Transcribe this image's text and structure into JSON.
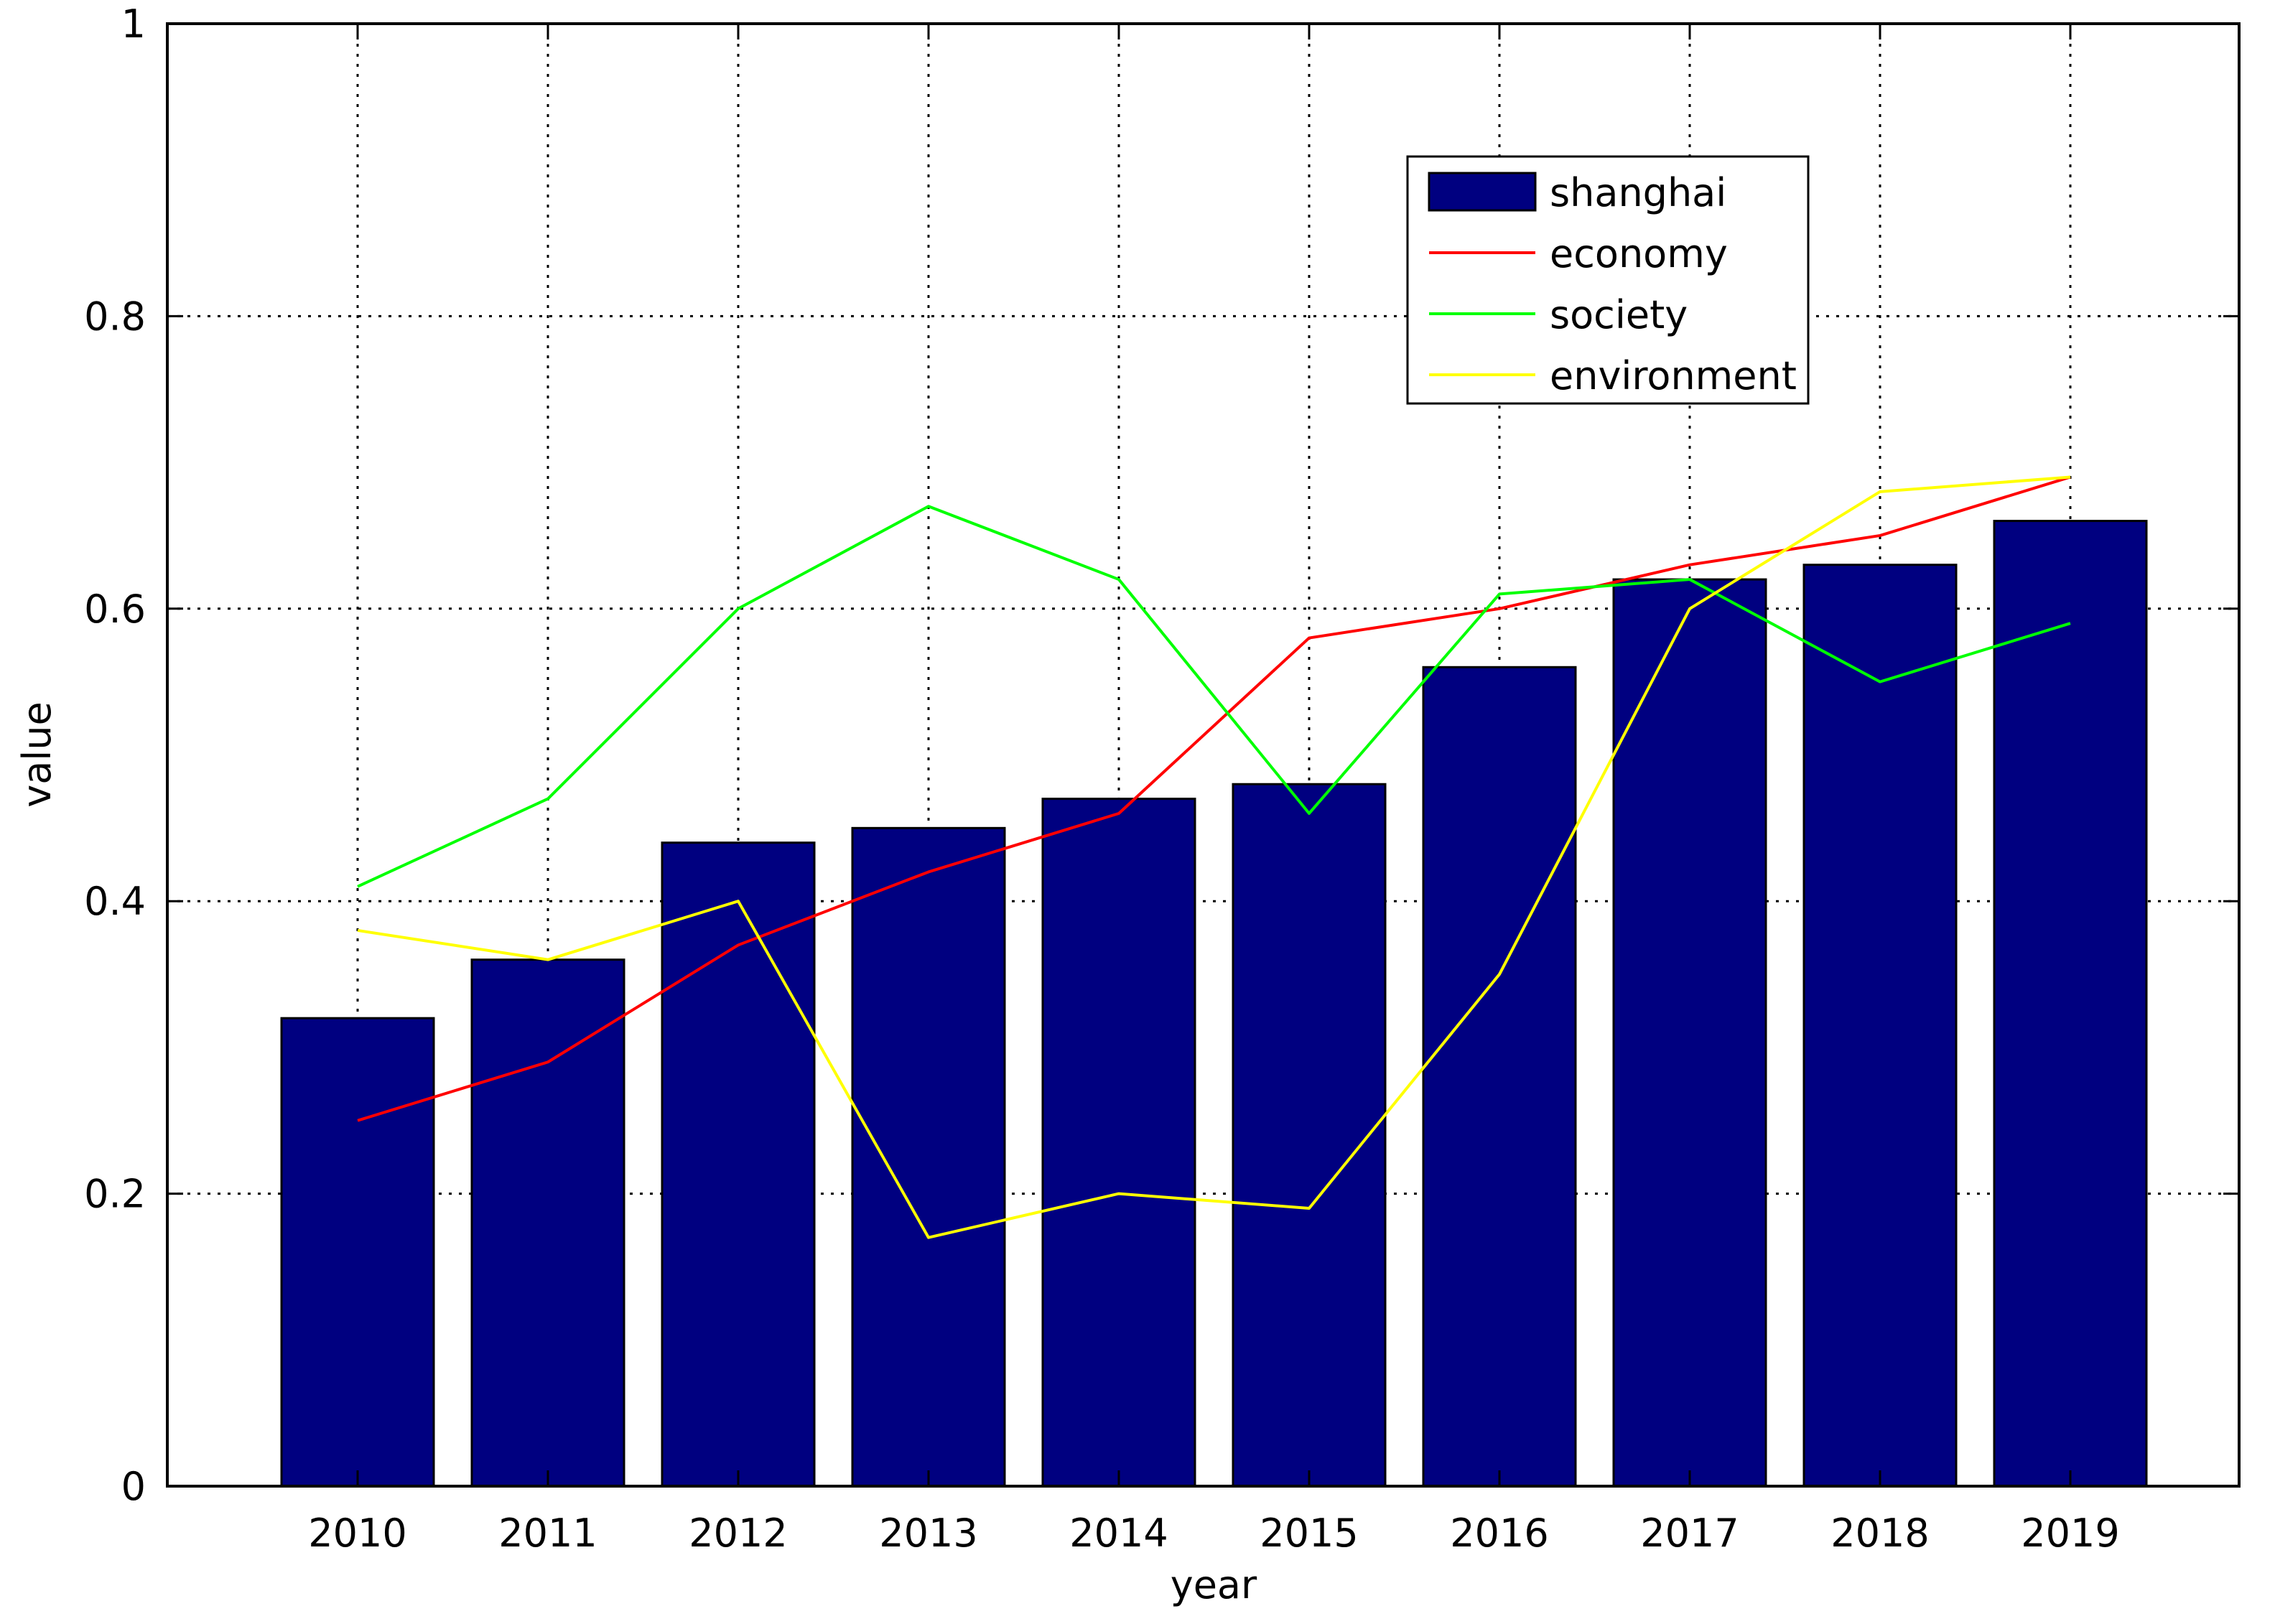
{
  "chart_data": {
    "type": "bar",
    "categories": [
      "2010",
      "2011",
      "2012",
      "2013",
      "2014",
      "2015",
      "2016",
      "2017",
      "2018",
      "2019"
    ],
    "bars": {
      "name": "shanghai",
      "color": "#000080",
      "values": [
        0.32,
        0.36,
        0.44,
        0.45,
        0.47,
        0.48,
        0.56,
        0.62,
        0.63,
        0.66
      ]
    },
    "lines": [
      {
        "name": "economy",
        "color": "#ff0000",
        "values": [
          0.25,
          0.29,
          0.37,
          0.42,
          0.46,
          0.58,
          0.6,
          0.63,
          0.65,
          0.69
        ]
      },
      {
        "name": "society",
        "color": "#00ff00",
        "values": [
          0.41,
          0.47,
          0.6,
          0.67,
          0.62,
          0.46,
          0.61,
          0.62,
          0.55,
          0.59
        ]
      },
      {
        "name": "environment",
        "color": "#ffff00",
        "values": [
          0.38,
          0.36,
          0.4,
          0.17,
          0.2,
          0.19,
          0.35,
          0.6,
          0.68,
          0.69
        ]
      }
    ],
    "xlabel": "year",
    "ylabel": "value",
    "ylim": [
      0,
      1
    ],
    "yticks": [
      "0",
      "0.2",
      "0.4",
      "0.6",
      "0.8",
      "1"
    ],
    "grid": true,
    "legend_position": "top-right"
  }
}
